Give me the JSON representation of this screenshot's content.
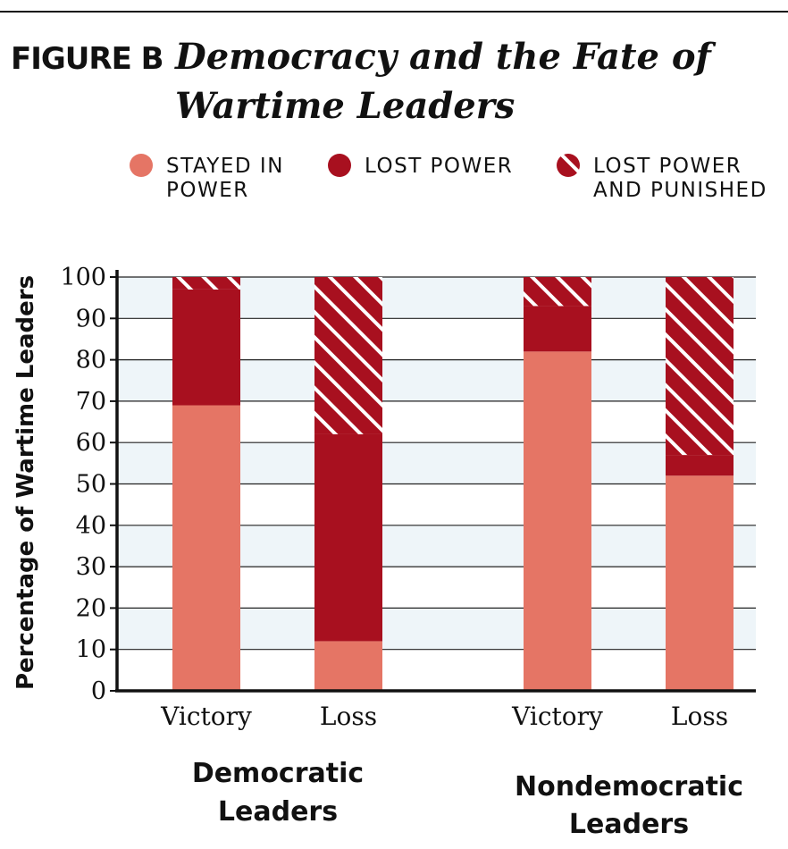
{
  "figure": {
    "label": "FIGURE B",
    "title_line1": "Democracy and the Fate of",
    "title_line2": "Wartime Leaders"
  },
  "legend": [
    {
      "line1": "STAYED IN",
      "line2": "POWER",
      "style": "solid",
      "color": "#e57565"
    },
    {
      "line1": "LOST POWER",
      "line2": "",
      "style": "solid",
      "color": "#a8101f"
    },
    {
      "line1": "LOST POWER",
      "line2": "AND PUNISHED",
      "style": "hatched",
      "color": "#a8101f"
    }
  ],
  "colors": {
    "stayed": "#e57565",
    "lost": "#a8101f",
    "hatch_line": "#ffffff",
    "band": "#eef5f9",
    "axis": "#111111",
    "rule": "#111111"
  },
  "groups": [
    {
      "line1": "Democratic",
      "line2": "Leaders"
    },
    {
      "line1": "Nondemocratic",
      "line2": "Leaders"
    }
  ],
  "chart_data": {
    "type": "bar",
    "stacked": true,
    "ylabel": "Percentage of Wartime Leaders",
    "ylim": [
      0,
      100
    ],
    "yticks": [
      0,
      10,
      20,
      30,
      40,
      50,
      60,
      70,
      80,
      90,
      100
    ],
    "categories": [
      "Victory",
      "Loss",
      "Victory",
      "Loss"
    ],
    "category_groups": [
      "Democratic Leaders",
      "Democratic Leaders",
      "Nondemocratic Leaders",
      "Nondemocratic Leaders"
    ],
    "series": [
      {
        "name": "STAYED IN POWER",
        "values": [
          69,
          12,
          82,
          52
        ]
      },
      {
        "name": "LOST POWER",
        "values": [
          28,
          50,
          11,
          5
        ]
      },
      {
        "name": "LOST POWER AND PUNISHED",
        "values": [
          3,
          38,
          7,
          43
        ]
      }
    ],
    "grid": true,
    "legend_position": "top"
  }
}
